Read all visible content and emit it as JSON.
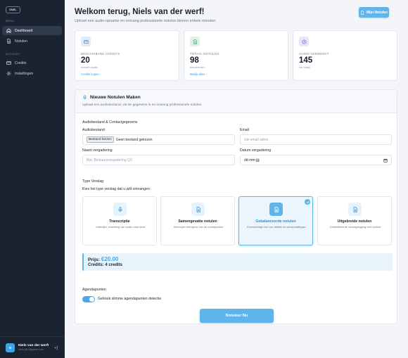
{
  "sidebar": {
    "logo": "SNEL",
    "sections": {
      "menu": "MENU",
      "account": "ACCOUNT"
    },
    "items": [
      {
        "label": "Dashboard",
        "icon": "home-icon",
        "active": true
      },
      {
        "label": "Notulen",
        "icon": "document-icon",
        "active": false
      },
      {
        "label": "Credits",
        "icon": "credit-card-icon",
        "active": false
      },
      {
        "label": "Instellingen",
        "icon": "gear-icon",
        "active": false
      }
    ],
    "user": {
      "initials": "N",
      "name": "Niels van der werf!",
      "email": "niels.@?@gmail.com"
    }
  },
  "header": {
    "title": "Welkom terug, Niels van der werf!",
    "subtitle": "Upload een audio-opname en ontvang professionele notulen binnen enkele minuten.",
    "new_button": "Mijn Notulen"
  },
  "stats": [
    {
      "label": "BESCHIKBARE CREDITS",
      "value": "20",
      "sub": "minuten audio",
      "link": "Credits kopen  ›",
      "icon": "credit-card-icon",
      "color": "#dcecfb",
      "icon_color": "#3c9bdc"
    },
    {
      "label": "TOTAAL NOTULEN",
      "value": "98",
      "sub": "documenten",
      "link": "Bekijk alles  ›",
      "icon": "document-icon",
      "color": "#dcf3e6",
      "icon_color": "#3bb273"
    },
    {
      "label": "AUDIO VERWERKT",
      "value": "145",
      "sub": "uur totaal",
      "link": "",
      "icon": "clock-icon",
      "color": "#e8e4f9",
      "icon_color": "#7a6ad8"
    }
  ],
  "form": {
    "title": "Nieuwe Notulen Maken",
    "subtitle": "Upload een audiobestand, vul de gegevens in en ontvang professionele notulen.",
    "section_audio": "Audiobestand & Contactgegevens",
    "audio_label": "Audiobestand",
    "file_button": "Bestand kiezen",
    "file_status": "Geen bestand gekozen",
    "email_label": "Email",
    "email_placeholder": "Uw email adres",
    "meeting_label": "Naam vergadering",
    "meeting_placeholder": "Bijv. Bestuursvergadering Q3",
    "date_label": "Datum vergadering",
    "date_value": "dd-mm-jjjj",
    "type_section": "Type Verslag",
    "type_prompt": "Kies het type verslag dat u wilt ontvangen:",
    "types": [
      {
        "title": "Transcriptie",
        "desc": "Letterlijke omzetting van audio naar tekst",
        "icon": "microphone-icon",
        "selected": false
      },
      {
        "title": "Samengevatte notulen",
        "desc": "Beknopte weergave van de hoofdpunten",
        "icon": "document-icon",
        "selected": false
      },
      {
        "title": "Gebalanceerde notulen",
        "desc": "Evenwichtige mix van details en samenvattingen",
        "icon": "document-icon",
        "selected": true
      },
      {
        "title": "Uitgebreide notulen",
        "desc": "Gedetailleerde verslaglegging met context",
        "icon": "document-icon",
        "selected": false
      }
    ],
    "price_label": "Prijs:",
    "price_amount": "€20.00",
    "credits_line": "Credits: 4 credits",
    "agenda_section": "Agendapunten",
    "agenda_toggle_label": "Gebruik slimme agendapunten detectie",
    "agenda_toggle_on": true,
    "submit": "Notuleer Nu"
  }
}
